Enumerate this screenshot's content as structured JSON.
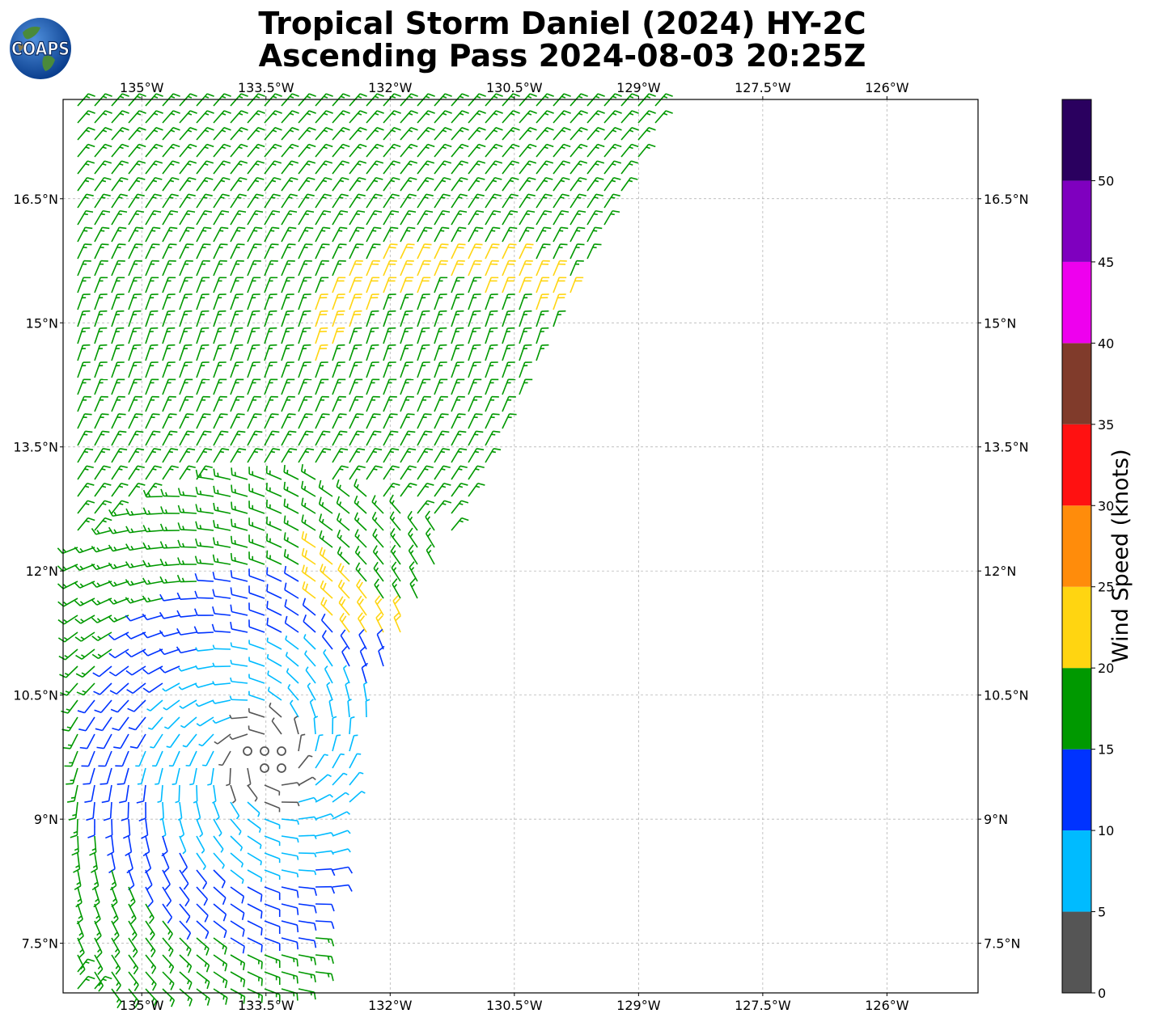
{
  "title": {
    "line1": "Tropical Storm Daniel (2024) HY-2C",
    "line2": "Ascending Pass 2024-08-03 20:25Z"
  },
  "logo": {
    "text": "COAPS",
    "icon": "globe-logo-icon"
  },
  "map": {
    "lon_labels": [
      "135°W",
      "133.5°W",
      "132°W",
      "130.5°W",
      "129°W",
      "127.5°W",
      "126°W"
    ],
    "lon_values": [
      -135,
      -133.5,
      -132,
      -130.5,
      -129,
      -127.5,
      -126
    ],
    "lat_labels": [
      "16.5°N",
      "15°N",
      "13.5°N",
      "12°N",
      "10.5°N",
      "9°N",
      "7.5°N"
    ],
    "lat_values": [
      16.5,
      15,
      13.5,
      12,
      10.5,
      9,
      7.5
    ],
    "lon_range": [
      -135.95,
      -124.9
    ],
    "lat_range": [
      6.9,
      17.7
    ],
    "grid": true
  },
  "colorbar": {
    "label": "Wind Speed (knots)",
    "ticks": [
      "0",
      "5",
      "10",
      "15",
      "20",
      "25",
      "30",
      "35",
      "40",
      "45",
      "50"
    ],
    "bins": [
      {
        "min": 0,
        "max": 5,
        "color": "#555555"
      },
      {
        "min": 5,
        "max": 10,
        "color": "#00bbff"
      },
      {
        "min": 10,
        "max": 15,
        "color": "#0033ff"
      },
      {
        "min": 15,
        "max": 20,
        "color": "#009900"
      },
      {
        "min": 20,
        "max": 25,
        "color": "#ffd511"
      },
      {
        "min": 25,
        "max": 30,
        "color": "#ff8c0b"
      },
      {
        "min": 30,
        "max": 35,
        "color": "#ff1111"
      },
      {
        "min": 35,
        "max": 40,
        "color": "#803b2b"
      },
      {
        "min": 40,
        "max": 45,
        "color": "#ee00ee"
      },
      {
        "min": 45,
        "max": 50,
        "color": "#7f00bf"
      },
      {
        "min": 50,
        "max": 55,
        "color": "#2a005f"
      }
    ]
  },
  "storm_center": {
    "lon": -133.5,
    "lat": 9.75
  }
}
